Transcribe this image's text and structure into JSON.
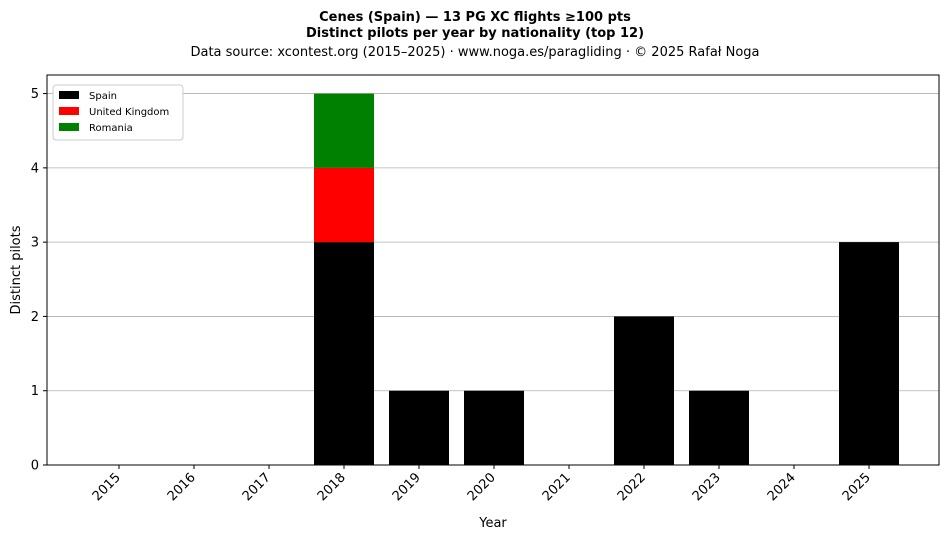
{
  "chart_data": {
    "type": "bar",
    "stacked": true,
    "title": "Cenes (Spain)  —  13 PG XC flights ≥100 pts",
    "subtitle": "Distinct pilots per year by nationality (top 12)",
    "source": "Data source: xcontest.org (2015–2025)  ·  www.noga.es/paragliding  ·  © 2025 Rafał Noga",
    "xlabel": "Year",
    "ylabel": "Distinct pilots",
    "categories": [
      "2015",
      "2016",
      "2017",
      "2018",
      "2019",
      "2020",
      "2021",
      "2022",
      "2023",
      "2024",
      "2025"
    ],
    "series": [
      {
        "name": "Spain",
        "color": "#000000",
        "values": [
          0,
          0,
          0,
          3,
          1,
          1,
          0,
          2,
          1,
          0,
          3
        ]
      },
      {
        "name": "United Kingdom",
        "color": "#ff0000",
        "values": [
          0,
          0,
          0,
          1,
          0,
          0,
          0,
          0,
          0,
          0,
          0
        ]
      },
      {
        "name": "Romania",
        "color": "#008000",
        "values": [
          0,
          0,
          0,
          1,
          0,
          0,
          0,
          0,
          0,
          0,
          0
        ]
      }
    ],
    "ylim": [
      0,
      5.25
    ],
    "yticks": [
      "0",
      "1",
      "2",
      "3",
      "4",
      "5"
    ],
    "grid": "y",
    "legend_position": "top-left"
  }
}
